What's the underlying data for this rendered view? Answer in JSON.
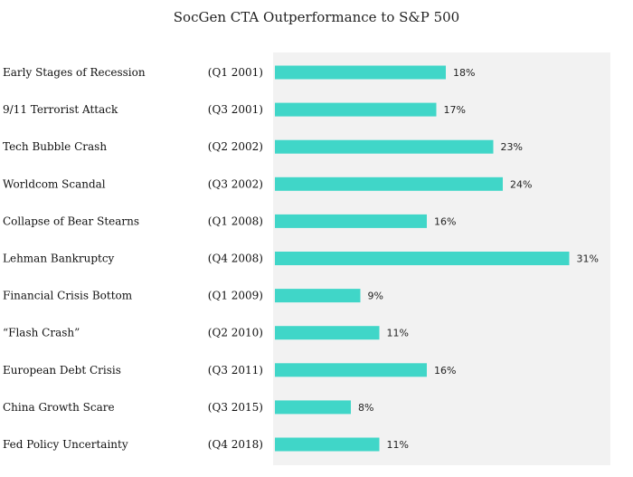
{
  "chart_data": {
    "type": "bar",
    "orientation": "horizontal",
    "title": "SocGen CTA Outperformance to S&P 500",
    "xlabel": "",
    "ylabel": "",
    "xlim": [
      0,
      31
    ],
    "grid": false,
    "bar_color": "#40d6c8",
    "plot_background": "#f2f2f2",
    "categories": [
      "Early Stages of Recession",
      "9/11 Terrorist Attack",
      "Tech Bubble Crash",
      "Worldcom Scandal",
      "Collapse of Bear Stearns",
      "Lehman Bankruptcy",
      "Financial Crisis Bottom",
      "“Flash Crash”",
      "European Debt Crisis",
      "China Growth Scare",
      "Fed Policy Uncertainty"
    ],
    "periods": [
      "(Q1 2001)",
      "(Q3 2001)",
      "(Q2 2002)",
      "(Q3 2002)",
      "(Q1 2008)",
      "(Q4 2008)",
      "(Q1 2009)",
      "(Q2 2010)",
      "(Q3 2011)",
      "(Q3 2015)",
      "(Q4 2018)"
    ],
    "values": [
      18,
      17,
      23,
      24,
      16,
      31,
      9,
      11,
      16,
      8,
      11
    ],
    "value_labels": [
      "18%",
      "17%",
      "23%",
      "24%",
      "16%",
      "31%",
      "9%",
      "11%",
      "16%",
      "8%",
      "11%"
    ]
  }
}
